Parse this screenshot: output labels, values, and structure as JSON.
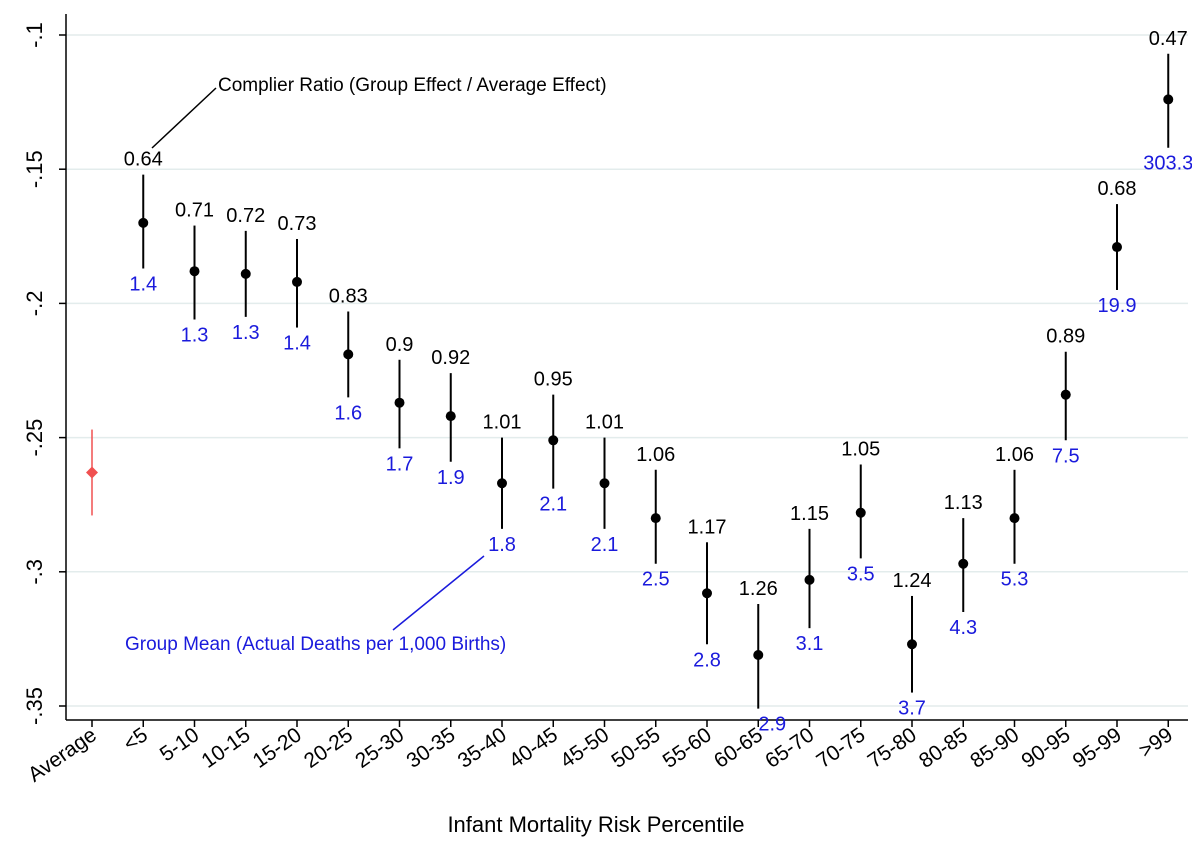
{
  "chart_data": {
    "type": "scatter",
    "title": "",
    "xlabel": "Infant Mortality Risk Percentile",
    "ylabel": "",
    "ylim": [
      -0.355,
      -0.095
    ],
    "yticks": [
      -0.1,
      -0.15,
      -0.2,
      -0.25,
      -0.3,
      -0.35
    ],
    "ytick_labels": [
      "-.1",
      "-.15",
      "-.2",
      "-.25",
      "-.3",
      "-.35"
    ],
    "grid": true,
    "colors": {
      "point": "#000000",
      "average": "#f05050",
      "mean_label": "#1a1adc",
      "grid": "#e3ecec"
    },
    "average": {
      "category": "Average",
      "value": -0.263,
      "ci": [
        -0.279,
        -0.247
      ]
    },
    "groups": [
      {
        "category": "<5",
        "value": -0.17,
        "ci": [
          -0.187,
          -0.152
        ],
        "ratio": "0.64",
        "mean": "1.4"
      },
      {
        "category": "5-10",
        "value": -0.188,
        "ci": [
          -0.206,
          -0.171
        ],
        "ratio": "0.71",
        "mean": "1.3"
      },
      {
        "category": "10-15",
        "value": -0.189,
        "ci": [
          -0.205,
          -0.173
        ],
        "ratio": "0.72",
        "mean": "1.3"
      },
      {
        "category": "15-20",
        "value": -0.192,
        "ci": [
          -0.209,
          -0.176
        ],
        "ratio": "0.73",
        "mean": "1.4"
      },
      {
        "category": "20-25",
        "value": -0.219,
        "ci": [
          -0.235,
          -0.203
        ],
        "ratio": "0.83",
        "mean": "1.6"
      },
      {
        "category": "25-30",
        "value": -0.237,
        "ci": [
          -0.254,
          -0.221
        ],
        "ratio": "0.9",
        "mean": "1.7"
      },
      {
        "category": "30-35",
        "value": -0.242,
        "ci": [
          -0.259,
          -0.226
        ],
        "ratio": "0.92",
        "mean": "1.9"
      },
      {
        "category": "35-40",
        "value": -0.267,
        "ci": [
          -0.284,
          -0.25
        ],
        "ratio": "1.01",
        "mean": "1.8"
      },
      {
        "category": "40-45",
        "value": -0.251,
        "ci": [
          -0.269,
          -0.234
        ],
        "ratio": "0.95",
        "mean": "2.1"
      },
      {
        "category": "45-50",
        "value": -0.267,
        "ci": [
          -0.284,
          -0.25
        ],
        "ratio": "1.01",
        "mean": "2.1"
      },
      {
        "category": "50-55",
        "value": -0.28,
        "ci": [
          -0.297,
          -0.262
        ],
        "ratio": "1.06",
        "mean": "2.5"
      },
      {
        "category": "55-60",
        "value": -0.308,
        "ci": [
          -0.327,
          -0.289
        ],
        "ratio": "1.17",
        "mean": "2.8"
      },
      {
        "category": "60-65",
        "value": -0.331,
        "ci": [
          -0.351,
          -0.312
        ],
        "ratio": "1.26",
        "mean": "2.9"
      },
      {
        "category": "65-70",
        "value": -0.303,
        "ci": [
          -0.321,
          -0.284
        ],
        "ratio": "1.15",
        "mean": "3.1"
      },
      {
        "category": "70-75",
        "value": -0.278,
        "ci": [
          -0.295,
          -0.26
        ],
        "ratio": "1.05",
        "mean": "3.5"
      },
      {
        "category": "75-80",
        "value": -0.327,
        "ci": [
          -0.345,
          -0.309
        ],
        "ratio": "1.24",
        "mean": "3.7"
      },
      {
        "category": "80-85",
        "value": -0.297,
        "ci": [
          -0.315,
          -0.28
        ],
        "ratio": "1.13",
        "mean": "4.3"
      },
      {
        "category": "85-90",
        "value": -0.28,
        "ci": [
          -0.297,
          -0.262
        ],
        "ratio": "1.06",
        "mean": "5.3"
      },
      {
        "category": "90-95",
        "value": -0.234,
        "ci": [
          -0.251,
          -0.218
        ],
        "ratio": "0.89",
        "mean": "7.5"
      },
      {
        "category": "95-99",
        "value": -0.179,
        "ci": [
          -0.195,
          -0.163
        ],
        "ratio": "0.68",
        "mean": "19.9"
      },
      {
        "category": ">99",
        "value": -0.124,
        "ci": [
          -0.142,
          -0.107
        ],
        "ratio": "0.47",
        "mean": "303.3"
      }
    ],
    "annotations": {
      "ratio_note": "Complier Ratio (Group Effect / Average Effect)",
      "mean_note": "Group Mean (Actual Deaths per 1,000 Births)"
    }
  }
}
